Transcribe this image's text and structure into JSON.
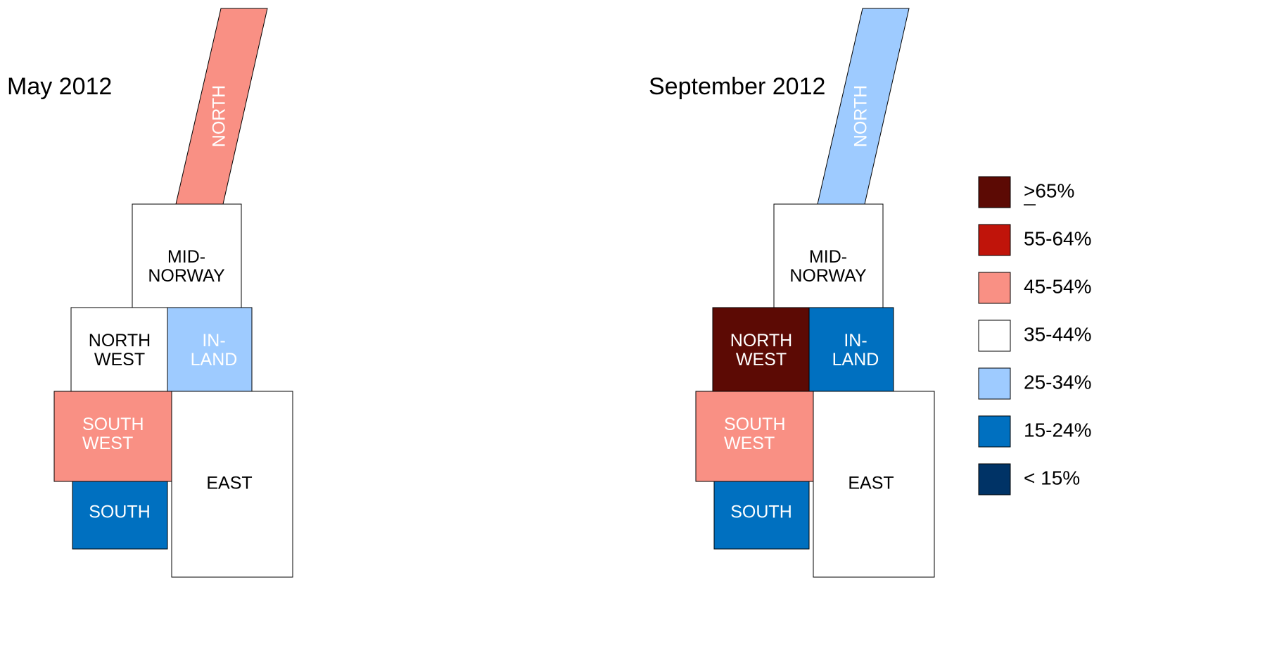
{
  "maps": [
    {
      "title": "May 2012",
      "regions": [
        {
          "label": [
            "NORTH"
          ],
          "color": "#f99084"
        },
        {
          "label": [
            "MID-",
            "NORWAY"
          ],
          "color": "#ffffff"
        },
        {
          "label": [
            "NORTH",
            "WEST"
          ],
          "color": "#ffffff"
        },
        {
          "label": [
            "IN-",
            "LAND"
          ],
          "color": "#9ecbff"
        },
        {
          "label": [
            "SOUTH",
            "WEST"
          ],
          "color": "#f99084"
        },
        {
          "label": [
            "SOUTH"
          ],
          "color": "#0070c0"
        },
        {
          "label": [
            "EAST"
          ],
          "color": "#ffffff"
        }
      ]
    },
    {
      "title": "September 2012",
      "regions": [
        {
          "label": [
            "NORTH"
          ],
          "color": "#9ecbff"
        },
        {
          "label": [
            "MID-",
            "NORWAY"
          ],
          "color": "#ffffff"
        },
        {
          "label": [
            "NORTH",
            "WEST"
          ],
          "color": "#5c0a04"
        },
        {
          "label": [
            "IN-",
            "LAND"
          ],
          "color": "#0070c0"
        },
        {
          "label": [
            "SOUTH",
            "WEST"
          ],
          "color": "#f99084"
        },
        {
          "label": [
            "SOUTH"
          ],
          "color": "#0070c0"
        },
        {
          "label": [
            "EAST"
          ],
          "color": "#ffffff"
        }
      ]
    }
  ],
  "legend": [
    {
      "label": ">65%",
      "color": "#5c0a04"
    },
    {
      "label": "55-64%",
      "color": "#c0140a"
    },
    {
      "label": "45-54%",
      "color": "#f99084"
    },
    {
      "label": "35-44%",
      "color": "#ffffff"
    },
    {
      "label": "25-34%",
      "color": "#9ecbff"
    },
    {
      "label": "15-24%",
      "color": "#0070c0"
    },
    {
      "label": "< 15%",
      "color": "#003366"
    }
  ]
}
